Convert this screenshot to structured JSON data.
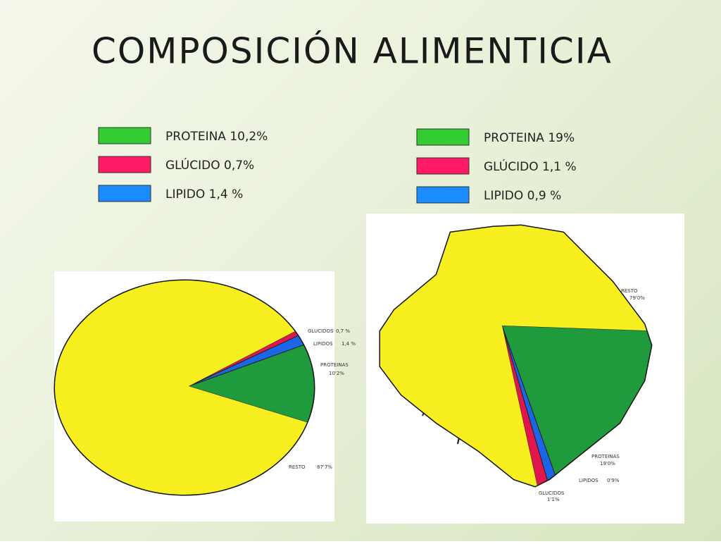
{
  "title": "COMPOSICIÓN ALIMENTICIA",
  "chart_data": [
    {
      "type": "pie",
      "legend": [
        {
          "label": "PROTEINA 10,2%",
          "color": "#33cc33"
        },
        {
          "label": "GLÚCIDO 0,7%",
          "color": "#ff1a66"
        },
        {
          "label": "LIPIDO 1,4 %",
          "color": "#1a8cff"
        }
      ],
      "categories": [
        "PROTEINAS",
        "LIPIDOS",
        "GLUCIDOS",
        "RESTO"
      ],
      "values": [
        10.2,
        1.4,
        0.7,
        87.7
      ],
      "value_labels": [
        "10'2%",
        "1,4 %",
        "0,7 %",
        "87'7%"
      ],
      "colors": [
        "#1f9a3c",
        "#1a66e6",
        "#e0174d",
        "#f7ef1f"
      ]
    },
    {
      "type": "pie",
      "legend": [
        {
          "label": "PROTEINA 19%",
          "color": "#33cc33"
        },
        {
          "label": "GLÚCIDO 1,1 %",
          "color": "#ff1a66"
        },
        {
          "label": "LIPIDO 0,9 %",
          "color": "#1a8cff"
        }
      ],
      "categories": [
        "PROTEINAS",
        "LIPIDOS",
        "GLUCIDOS",
        "RESTO"
      ],
      "values": [
        19.0,
        0.9,
        1.1,
        79.0
      ],
      "value_labels": [
        "19'0%",
        "0'9%",
        "1'1%",
        "79'0%"
      ],
      "colors": [
        "#1f9a3c",
        "#1a66e6",
        "#e0174d",
        "#f7ef1f"
      ]
    }
  ]
}
